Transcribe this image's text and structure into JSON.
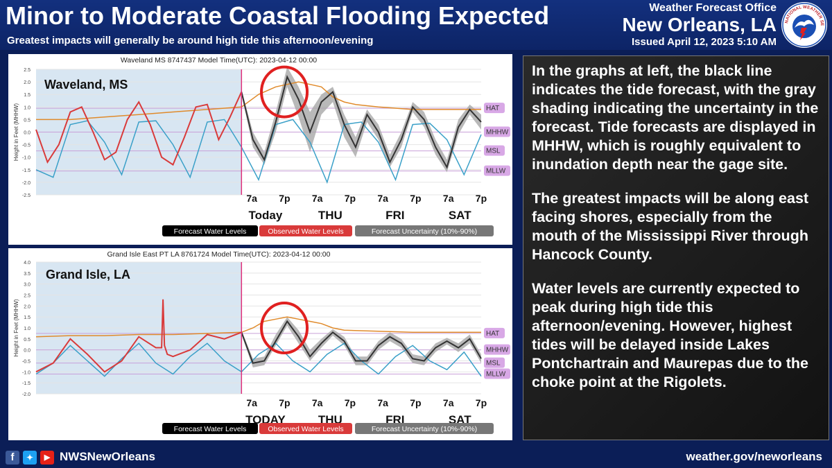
{
  "header": {
    "title": "Minor to Moderate Coastal Flooding Expected",
    "subtitle": "Greatest impacts will generally be around high tide this afternoon/evening",
    "office_line1": "Weather Forecast Office",
    "office_line2": "New Orleans, LA",
    "issued": "Issued April 12, 2023 5:10 AM"
  },
  "logo": {
    "text": "NATIONAL WEATHER SERVICE",
    "color": "#1b4fb3",
    "icon": "nws-logo-icon"
  },
  "explanation": [
    "In the graphs at left, the black line indicates the tide forecast, with the gray shading indicating the uncertainty in the forecast. Tide forecasts are displayed in MHHW, which is roughly equivalent to inundation depth near the gage site.",
    "The greatest impacts will be along east facing shores, especially from the mouth of the Mississippi River through Hancock County.",
    "Water levels are currently expected to peak during high tide this afternoon/evening.  However, highest tides will be delayed inside Lakes Pontchartrain and Maurepas due to the choke point at the Rigolets."
  ],
  "footer": {
    "handle": "NWSNewOrleans",
    "website": "weather.gov/neworleans",
    "icons": [
      "facebook-icon",
      "twitter-icon",
      "youtube-icon"
    ]
  },
  "colors": {
    "forecast": "#333333",
    "observed": "#d93a3a",
    "astronomical": "#3aa0c8",
    "threshold": "#e08a2a",
    "uncertainty": "#a8a8a8",
    "past_shading": "#d8e6f2",
    "now_line": "#e0307a",
    "highlight_circle": "#e02020"
  },
  "chart_data": [
    {
      "type": "line",
      "title": "Waveland MS 8747437 Model Time(UTC): 2023-04-12 00:00",
      "location": "Waveland, MS",
      "ylabel": "Height in Feet (MHHW)",
      "ylim": [
        -2.5,
        2.5
      ],
      "yticks": [
        "2.5",
        "2.0",
        "1.5",
        "1.0",
        "0.5",
        "0.0",
        "-0.5",
        "-1.0",
        "-1.5",
        "-2.0",
        "-2.5"
      ],
      "xlim": [
        0,
        156
      ],
      "now_x": 72,
      "time_labels": [
        "7a",
        "7p",
        "7a",
        "7p",
        "7a",
        "7p",
        "7a",
        "7p"
      ],
      "time_label_x": [
        79,
        91,
        103,
        115,
        127,
        139,
        151,
        163
      ],
      "day_labels": [
        "Today",
        "THU",
        "FRI",
        "SAT"
      ],
      "day_label_x": [
        85,
        109,
        133,
        157
      ],
      "reference_lines": [
        {
          "name": "HAT",
          "value": 0.95
        },
        {
          "name": "MHHW",
          "value": 0.0
        },
        {
          "name": "MSL",
          "value": -0.75
        },
        {
          "name": "MLLW",
          "value": -1.55
        }
      ],
      "legend": [
        "Forecast Water Levels",
        "Observed Water Levels",
        "Forecast Uncertainty (10%-90%)"
      ],
      "highlight": {
        "x": 87,
        "y": 1.6
      },
      "series": [
        {
          "name": "Observed Water Levels",
          "role": "observed",
          "x": [
            0,
            4,
            8,
            12,
            16,
            20,
            24,
            28,
            32,
            36,
            40,
            44,
            48,
            52,
            56,
            60,
            64,
            68,
            72
          ],
          "values": [
            0.1,
            -1.2,
            -0.5,
            0.8,
            1.0,
            0.0,
            -1.1,
            -0.8,
            0.5,
            1.2,
            0.3,
            -1.0,
            -1.3,
            -0.2,
            1.0,
            1.1,
            -0.3,
            0.6,
            1.6
          ]
        },
        {
          "name": "Forecast Water Levels",
          "role": "forecast",
          "x": [
            72,
            76,
            80,
            84,
            88,
            92,
            96,
            100,
            104,
            108,
            112,
            116,
            120,
            124,
            128,
            132,
            136,
            140,
            144,
            148,
            152,
            156
          ],
          "values": [
            1.6,
            -0.3,
            -1.1,
            0.4,
            2.2,
            1.3,
            0.0,
            1.2,
            1.6,
            0.3,
            -0.6,
            0.7,
            0.0,
            -1.2,
            -0.3,
            1.0,
            0.5,
            -0.6,
            -1.4,
            0.2,
            0.9,
            0.4
          ],
          "upper": [
            1.7,
            0.0,
            -0.8,
            0.8,
            2.6,
            1.8,
            0.8,
            1.5,
            1.8,
            0.7,
            -0.2,
            0.9,
            0.3,
            -0.9,
            0.0,
            1.2,
            0.8,
            -0.3,
            -1.1,
            0.5,
            1.1,
            0.7
          ],
          "lower": [
            1.5,
            -0.6,
            -1.3,
            0.0,
            1.8,
            0.6,
            -0.8,
            0.7,
            1.2,
            -0.2,
            -1.0,
            0.4,
            -0.3,
            -1.4,
            -0.6,
            0.8,
            0.2,
            -0.9,
            -1.6,
            -0.1,
            0.7,
            0.1
          ]
        },
        {
          "name": "Astronomical Tide",
          "role": "astro",
          "x": [
            0,
            6,
            12,
            18,
            24,
            30,
            36,
            42,
            48,
            54,
            60,
            66,
            72,
            78,
            84,
            90,
            96,
            102,
            108,
            114,
            120,
            126,
            132,
            138,
            144,
            150,
            156
          ],
          "values": [
            -1.5,
            -1.8,
            0.3,
            0.45,
            -0.4,
            -1.7,
            0.4,
            0.45,
            -0.5,
            -1.8,
            0.4,
            0.5,
            -0.6,
            -1.9,
            0.3,
            0.5,
            -0.4,
            -2.0,
            0.3,
            0.4,
            -0.4,
            -1.9,
            0.3,
            0.35,
            -0.3,
            -1.7,
            -0.1
          ]
        },
        {
          "name": "Threshold",
          "role": "threshold",
          "x": [
            0,
            12,
            24,
            36,
            48,
            60,
            72,
            78,
            84,
            88,
            92,
            96,
            100,
            104,
            108,
            112,
            120,
            132,
            144,
            156
          ],
          "values": [
            0.5,
            0.5,
            0.6,
            0.7,
            0.8,
            0.9,
            1.0,
            1.5,
            1.8,
            1.9,
            2.0,
            1.9,
            1.8,
            1.4,
            1.2,
            1.1,
            1.0,
            0.9,
            0.9,
            0.9
          ]
        }
      ]
    },
    {
      "type": "line",
      "title": "Grand Isle East PT LA 8761724 Model Time(UTC): 2023-04-12 00:00",
      "location": "Grand Isle, LA",
      "ylabel": "Height in Feet (MHHW)",
      "ylim": [
        -2.0,
        4.0
      ],
      "yticks": [
        "4.0",
        "3.5",
        "3.0",
        "2.5",
        "2.0",
        "1.5",
        "1.0",
        "0.5",
        "0.0",
        "-0.5",
        "-1.0",
        "-1.5",
        "-2.0"
      ],
      "xlim": [
        0,
        156
      ],
      "now_x": 72,
      "time_labels": [
        "7a",
        "7p",
        "7a",
        "7p",
        "7a",
        "7p",
        "7a",
        "7p"
      ],
      "time_label_x": [
        79,
        91,
        103,
        115,
        127,
        139,
        151,
        163
      ],
      "day_labels": [
        "TODAY",
        "THU",
        "FRI",
        "SAT"
      ],
      "day_label_x": [
        85,
        109,
        133,
        157
      ],
      "reference_lines": [
        {
          "name": "HAT",
          "value": 0.75
        },
        {
          "name": "MHHW",
          "value": 0.0
        },
        {
          "name": "MSL",
          "value": -0.6
        },
        {
          "name": "MLLW",
          "value": -1.1
        }
      ],
      "legend": [
        "Forecast Water Levels",
        "Observed Water Levels",
        "Forecast Uncertainty (10%-90%)"
      ],
      "highlight": {
        "x": 87,
        "y": 1.0
      },
      "series": [
        {
          "name": "Observed Water Levels",
          "role": "observed",
          "x": [
            0,
            6,
            12,
            18,
            24,
            30,
            36,
            42,
            44,
            44.5,
            45,
            46,
            48,
            54,
            60,
            66,
            72
          ],
          "values": [
            -1.0,
            -0.6,
            0.5,
            -0.2,
            -1.0,
            -0.5,
            0.6,
            0.1,
            0.1,
            2.3,
            0.2,
            -0.2,
            -0.3,
            0.0,
            0.7,
            0.5,
            0.8
          ]
        },
        {
          "name": "Forecast Water Levels",
          "role": "forecast",
          "x": [
            72,
            76,
            80,
            84,
            88,
            92,
            96,
            100,
            104,
            108,
            112,
            116,
            120,
            124,
            128,
            132,
            136,
            140,
            144,
            148,
            152,
            156
          ],
          "values": [
            0.8,
            -0.6,
            -0.5,
            0.4,
            1.3,
            0.6,
            -0.3,
            0.3,
            0.8,
            0.4,
            -0.5,
            -0.5,
            0.2,
            0.6,
            0.3,
            -0.4,
            -0.5,
            0.1,
            0.4,
            0.1,
            0.5,
            -0.4
          ],
          "upper": [
            0.9,
            -0.4,
            -0.3,
            0.7,
            1.5,
            0.9,
            0.0,
            0.5,
            0.95,
            0.6,
            -0.3,
            -0.3,
            0.4,
            0.8,
            0.5,
            -0.2,
            -0.3,
            0.3,
            0.55,
            0.3,
            0.7,
            -0.2
          ],
          "lower": [
            0.7,
            -0.8,
            -0.7,
            0.2,
            1.1,
            0.3,
            -0.5,
            0.1,
            0.65,
            0.2,
            -0.7,
            -0.7,
            0.0,
            0.4,
            0.1,
            -0.6,
            -0.7,
            -0.1,
            0.25,
            -0.1,
            0.3,
            -0.6
          ]
        },
        {
          "name": "Astronomical Tide",
          "role": "astro",
          "x": [
            0,
            6,
            12,
            18,
            24,
            30,
            36,
            42,
            48,
            54,
            60,
            66,
            72,
            78,
            84,
            90,
            96,
            102,
            108,
            114,
            120,
            126,
            132,
            138,
            144,
            150,
            156
          ],
          "values": [
            -1.1,
            -0.6,
            0.2,
            -0.5,
            -1.2,
            -0.4,
            0.3,
            -0.6,
            -1.1,
            -0.3,
            0.3,
            -0.5,
            -1.0,
            -0.2,
            0.3,
            -0.5,
            -1.0,
            -0.2,
            0.3,
            -0.5,
            -1.1,
            -0.3,
            0.2,
            -0.5,
            -0.9,
            -0.1,
            -1.2
          ]
        },
        {
          "name": "Threshold",
          "role": "threshold",
          "x": [
            0,
            12,
            24,
            36,
            48,
            60,
            72,
            76,
            80,
            84,
            88,
            92,
            96,
            100,
            104,
            108,
            120,
            132,
            144,
            156
          ],
          "values": [
            0.6,
            0.65,
            0.65,
            0.7,
            0.7,
            0.75,
            0.8,
            1.0,
            1.3,
            1.4,
            1.5,
            1.4,
            1.3,
            1.2,
            1.0,
            0.9,
            0.85,
            0.8,
            0.8,
            0.8
          ]
        }
      ]
    }
  ]
}
